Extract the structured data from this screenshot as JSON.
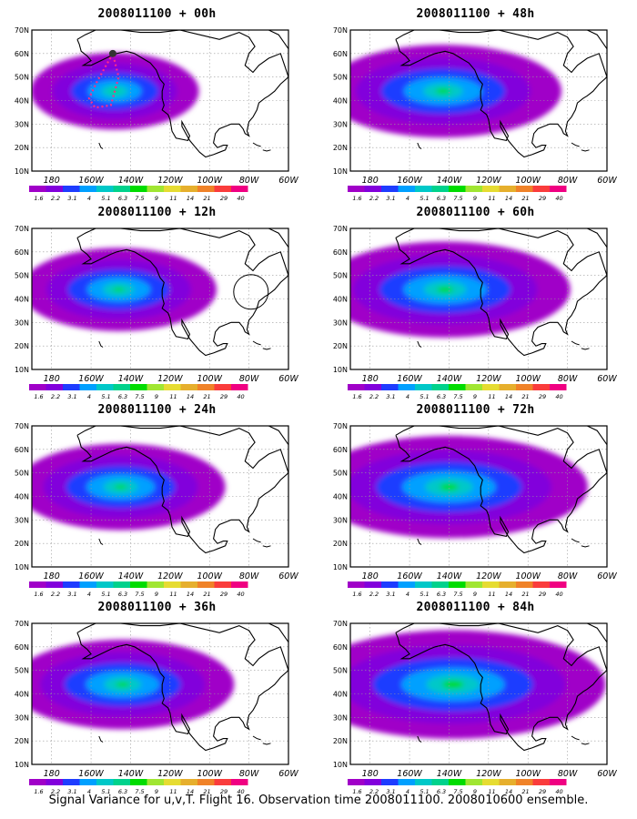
{
  "figure": {
    "caption": "Signal Variance for u,v,T. Flight 16. Observation time 2008011100. 2008010600 ensemble.",
    "lat_labels": [
      "70N",
      "60N",
      "50N",
      "40N",
      "30N",
      "20N",
      "10N"
    ],
    "lon_labels": [
      "180",
      "160W",
      "140W",
      "120W",
      "100W",
      "80W",
      "60W"
    ],
    "colorbar_labels": [
      "1.6",
      "2.2",
      "3.1",
      "4",
      "5.1",
      "6.3",
      "7.5",
      "9",
      "11",
      "14",
      "21",
      "29",
      "40"
    ],
    "colorbar_colors": [
      "#a000c8",
      "#8200dc",
      "#1e3cff",
      "#00a0ff",
      "#00c8c8",
      "#00d28c",
      "#00dc00",
      "#a0e632",
      "#e6dc32",
      "#e6af2d",
      "#f08228",
      "#fa3c3c",
      "#f00082"
    ],
    "colors": {
      "coast": "#000000",
      "grid": "#9a9a9a",
      "flight_track": "#ff2a8a"
    },
    "panels": [
      {
        "title": "2008011100 + 00h",
        "level": 0.35,
        "annotation": "flight-track"
      },
      {
        "title": "2008011100 + 12h",
        "level": 0.45,
        "annotation": "circle"
      },
      {
        "title": "2008011100 + 24h",
        "level": 0.5
      },
      {
        "title": "2008011100 + 36h",
        "level": 0.55
      },
      {
        "title": "2008011100 + 48h",
        "level": 0.6
      },
      {
        "title": "2008011100 + 60h",
        "level": 0.65
      },
      {
        "title": "2008011100 + 72h",
        "level": 0.75
      },
      {
        "title": "2008011100 + 84h",
        "level": 0.85
      }
    ]
  }
}
